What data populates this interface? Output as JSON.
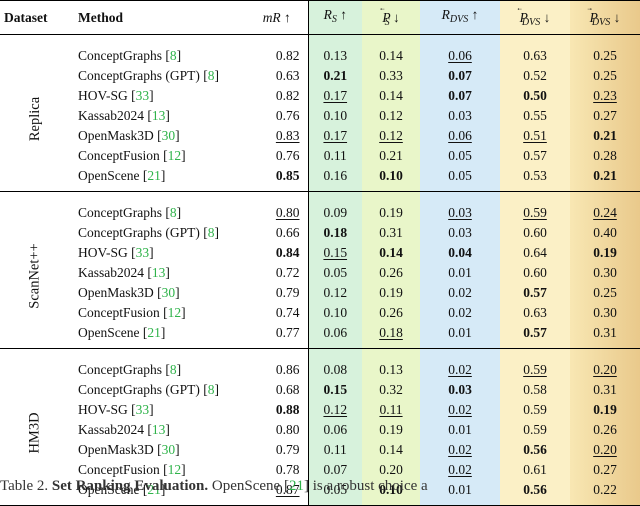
{
  "headers": {
    "dataset": "Dataset",
    "method": "Method",
    "mr": "mR ↑",
    "rs_main": "R",
    "rs_sub": "S",
    "rs_arrow": "↑",
    "ps_main": "P",
    "ps_sub": "S",
    "ps_mark": "⃖",
    "ps_arrow": "↓",
    "rd_main": "R",
    "rd_sub": "DVS",
    "rd_arrow": "↑",
    "pd_main": "P",
    "pd_sub": "DVS",
    "pd_mark": "⃖",
    "pd_arrow": "↓",
    "pd2_main": "P",
    "pd2_sub": "DVS",
    "pd2_mark": "⃗",
    "pd2_arrow": "↓"
  },
  "colors": {
    "rs_bg": "#d7f2dc",
    "ps_bg": "#e9f6c9",
    "rd_bg": "#d6eaf7",
    "pd_bg": "#fbf0c6",
    "pd2_bg": "#e9c98b",
    "citation": "#2fb34a"
  },
  "groups": [
    {
      "dataset": "Replica",
      "rows": [
        {
          "method": "ConceptGraphs",
          "cite": "8",
          "mr": "0.82",
          "rs": "0.13",
          "ps": "0.14",
          "rd": "0.06",
          "pd": "0.63",
          "pd2": "0.25",
          "fmt": {
            "rd": "u"
          }
        },
        {
          "method": "ConceptGraphs (GPT)",
          "cite": "8",
          "mr": "0.63",
          "rs": "0.21",
          "ps": "0.33",
          "rd": "0.07",
          "pd": "0.52",
          "pd2": "0.25",
          "fmt": {
            "rs": "b",
            "rd": "b"
          }
        },
        {
          "method": "HOV-SG",
          "cite": "33",
          "mr": "0.82",
          "rs": "0.17",
          "ps": "0.14",
          "rd": "0.07",
          "pd": "0.50",
          "pd2": "0.23",
          "fmt": {
            "rs": "u",
            "rd": "b",
            "pd": "b",
            "pd2": "u"
          }
        },
        {
          "method": "Kassab2024",
          "cite": "13",
          "mr": "0.76",
          "rs": "0.10",
          "ps": "0.12",
          "rd": "0.03",
          "pd": "0.55",
          "pd2": "0.27",
          "fmt": {}
        },
        {
          "method": "OpenMask3D",
          "cite": "30",
          "mr": "0.83",
          "rs": "0.17",
          "ps": "0.12",
          "rd": "0.06",
          "pd": "0.51",
          "pd2": "0.21",
          "fmt": {
            "mr": "u",
            "rs": "u",
            "ps": "u",
            "rd": "u",
            "pd": "u",
            "pd2": "b"
          }
        },
        {
          "method": "ConceptFusion",
          "cite": "12",
          "mr": "0.76",
          "rs": "0.11",
          "ps": "0.21",
          "rd": "0.05",
          "pd": "0.57",
          "pd2": "0.28",
          "fmt": {}
        },
        {
          "method": "OpenScene",
          "cite": "21",
          "mr": "0.85",
          "rs": "0.16",
          "ps": "0.10",
          "rd": "0.05",
          "pd": "0.53",
          "pd2": "0.21",
          "fmt": {
            "mr": "b",
            "ps": "b",
            "pd2": "b"
          }
        }
      ]
    },
    {
      "dataset": "ScanNet++",
      "rows": [
        {
          "method": "ConceptGraphs",
          "cite": "8",
          "mr": "0.80",
          "rs": "0.09",
          "ps": "0.19",
          "rd": "0.03",
          "pd": "0.59",
          "pd2": "0.24",
          "fmt": {
            "mr": "u",
            "rd": "u",
            "pd": "u",
            "pd2": "u"
          }
        },
        {
          "method": "ConceptGraphs (GPT)",
          "cite": "8",
          "mr": "0.66",
          "rs": "0.18",
          "ps": "0.31",
          "rd": "0.03",
          "pd": "0.60",
          "pd2": "0.40",
          "fmt": {
            "rs": "b"
          }
        },
        {
          "method": "HOV-SG",
          "cite": "33",
          "mr": "0.84",
          "rs": "0.15",
          "ps": "0.14",
          "rd": "0.04",
          "pd": "0.64",
          "pd2": "0.19",
          "fmt": {
            "mr": "b",
            "rs": "u",
            "ps": "b",
            "rd": "b",
            "pd2": "b"
          }
        },
        {
          "method": "Kassab2024",
          "cite": "13",
          "mr": "0.72",
          "rs": "0.05",
          "ps": "0.26",
          "rd": "0.01",
          "pd": "0.60",
          "pd2": "0.30",
          "fmt": {}
        },
        {
          "method": "OpenMask3D",
          "cite": "30",
          "mr": "0.79",
          "rs": "0.12",
          "ps": "0.19",
          "rd": "0.02",
          "pd": "0.57",
          "pd2": "0.25",
          "fmt": {
            "pd": "b"
          }
        },
        {
          "method": "ConceptFusion",
          "cite": "12",
          "mr": "0.74",
          "rs": "0.10",
          "ps": "0.26",
          "rd": "0.02",
          "pd": "0.63",
          "pd2": "0.30",
          "fmt": {}
        },
        {
          "method": "OpenScene",
          "cite": "21",
          "mr": "0.77",
          "rs": "0.06",
          "ps": "0.18",
          "rd": "0.01",
          "pd": "0.57",
          "pd2": "0.31",
          "fmt": {
            "ps": "u",
            "pd": "b"
          }
        }
      ]
    },
    {
      "dataset": "HM3D",
      "rows": [
        {
          "method": "ConceptGraphs",
          "cite": "8",
          "mr": "0.86",
          "rs": "0.08",
          "ps": "0.13",
          "rd": "0.02",
          "pd": "0.59",
          "pd2": "0.20",
          "fmt": {
            "rd": "u",
            "pd": "u",
            "pd2": "u"
          }
        },
        {
          "method": "ConceptGraphs (GPT)",
          "cite": "8",
          "mr": "0.68",
          "rs": "0.15",
          "ps": "0.32",
          "rd": "0.03",
          "pd": "0.58",
          "pd2": "0.31",
          "fmt": {
            "rs": "b",
            "rd": "b"
          }
        },
        {
          "method": "HOV-SG",
          "cite": "33",
          "mr": "0.88",
          "rs": "0.12",
          "ps": "0.11",
          "rd": "0.02",
          "pd": "0.59",
          "pd2": "0.19",
          "fmt": {
            "mr": "b",
            "rs": "u",
            "ps": "u",
            "rd": "u",
            "pd2": "b"
          }
        },
        {
          "method": "Kassab2024",
          "cite": "13",
          "mr": "0.80",
          "rs": "0.06",
          "ps": "0.19",
          "rd": "0.01",
          "pd": "0.59",
          "pd2": "0.26",
          "fmt": {}
        },
        {
          "method": "OpenMask3D",
          "cite": "30",
          "mr": "0.79",
          "rs": "0.11",
          "ps": "0.14",
          "rd": "0.02",
          "pd": "0.56",
          "pd2": "0.20",
          "fmt": {
            "rd": "u",
            "pd": "b",
            "pd2": "u"
          }
        },
        {
          "method": "ConceptFusion",
          "cite": "12",
          "mr": "0.78",
          "rs": "0.07",
          "ps": "0.20",
          "rd": "0.02",
          "pd": "0.61",
          "pd2": "0.27",
          "fmt": {
            "rd": "u"
          }
        },
        {
          "method": "OpenScene",
          "cite": "21",
          "mr": "0.87",
          "rs": "0.05",
          "ps": "0.10",
          "rd": "0.01",
          "pd": "0.56",
          "pd2": "0.22",
          "fmt": {
            "mr": "u",
            "ps": "b",
            "pd": "b"
          }
        }
      ]
    }
  ],
  "caption": {
    "prefix": "Table 2.",
    "lead": "Set Ranking Evaluation.",
    "text_before_cite": "OpenScene",
    "cite": "21",
    "text_after_cite": "is a robust choice a"
  }
}
